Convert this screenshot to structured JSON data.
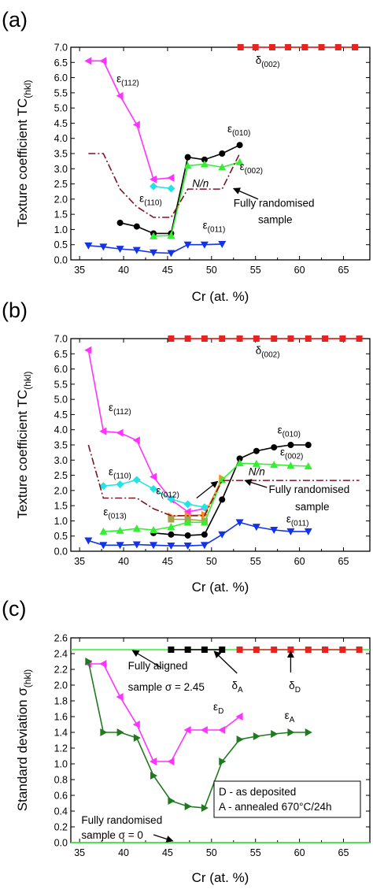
{
  "chart_data": [
    {
      "type": "line",
      "panel_label": "(a)",
      "xlabel": "Cr (at. %)",
      "ylabel": "Texture coefficient TC",
      "ylabel_sub": "(hkl)",
      "xlim": [
        34,
        68
      ],
      "ylim": [
        0,
        7
      ],
      "xticks": [
        "35",
        "40",
        "45",
        "50",
        "55",
        "60",
        "65"
      ],
      "yticks": [
        "0.0",
        "0.5",
        "1.0",
        "1.5",
        "2.0",
        "2.5",
        "3.0",
        "3.5",
        "4.0",
        "4.5",
        "5.0",
        "5.5",
        "6.0",
        "6.5",
        "7.0"
      ],
      "series": [
        {
          "key": "d002",
          "color": "#e8231f",
          "marker": "square",
          "dash": "",
          "x": [
            53.3,
            55.0,
            56.9,
            58.7,
            60.6,
            62.5,
            64.4,
            66.3
          ],
          "y": [
            7,
            7,
            7,
            7,
            7,
            7,
            7,
            7
          ]
        },
        {
          "key": "e112",
          "color": "#ff33ff",
          "marker": "tri-left",
          "dash": "",
          "x": [
            36.0,
            37.7,
            39.6,
            41.5,
            43.4,
            45.4
          ],
          "y": [
            6.55,
            6.55,
            5.4,
            4.45,
            2.65,
            2.7
          ]
        },
        {
          "key": "e010",
          "color": "#000000",
          "marker": "circle",
          "dash": "",
          "x": [
            39.6,
            41.5,
            43.4,
            45.4,
            47.3,
            49.2,
            51.2,
            53.2
          ],
          "y": [
            1.22,
            1.1,
            0.87,
            0.87,
            3.38,
            3.3,
            3.5,
            3.78
          ]
        },
        {
          "key": "e002",
          "color": "#33ee33",
          "marker": "tri-up",
          "dash": "",
          "x": [
            43.4,
            45.4,
            47.3,
            49.2,
            51.2,
            53.2
          ],
          "y": [
            0.78,
            0.8,
            3.1,
            3.15,
            3.05,
            3.22
          ]
        },
        {
          "key": "e110",
          "color": "#22e4e4",
          "marker": "diamond",
          "dash": "",
          "x": [
            43.4,
            45.4
          ],
          "y": [
            2.42,
            2.35
          ]
        },
        {
          "key": "e011",
          "color": "#1433e8",
          "marker": "tri-down",
          "dash": "",
          "x": [
            36.0,
            37.7,
            39.6,
            41.5,
            43.4,
            45.4,
            47.3,
            49.2,
            51.2
          ],
          "y": [
            0.47,
            0.43,
            0.36,
            0.32,
            0.24,
            0.22,
            0.5,
            0.5,
            0.52
          ]
        },
        {
          "key": "nn",
          "color": "#7d1424",
          "marker": "none",
          "dash": "9,3,2,3",
          "x": [
            36.0,
            37.7,
            39.6,
            41.5,
            43.4,
            45.4,
            47.3,
            49.2,
            51.2,
            53.2
          ],
          "y": [
            3.5,
            3.5,
            2.33,
            1.75,
            1.4,
            1.4,
            2.33,
            2.33,
            2.33,
            3.5
          ]
        }
      ],
      "labels": [
        {
          "text": "δ",
          "sub": "(002)",
          "x": 55.0,
          "y": 6.45
        },
        {
          "text": "ε",
          "sub": "(112)",
          "x": 39.2,
          "y": 5.85
        },
        {
          "text": "ε",
          "sub": "(010)",
          "x": 51.8,
          "y": 4.2
        },
        {
          "text": "ε",
          "sub": "(002)",
          "x": 53.2,
          "y": 2.95
        },
        {
          "text": "ε",
          "sub": "(110)",
          "x": 41.8,
          "y": 1.9
        },
        {
          "text": "ε",
          "sub": "(011)",
          "x": 49.0,
          "y": 1.02
        },
        {
          "text": "N/n",
          "sub": "",
          "x": 47.8,
          "y": 2.4,
          "italic": true,
          "color": "#7d1424"
        },
        {
          "text": "Fully randomised",
          "sub": "",
          "x": 52.5,
          "y": 1.75
        },
        {
          "text": "sample",
          "sub": "",
          "x": 55.3,
          "y": 1.2
        }
      ],
      "arrows": [
        {
          "x1": 55.3,
          "y1": 2.0,
          "x2": 52.5,
          "y2": 2.35
        }
      ]
    },
    {
      "type": "line",
      "panel_label": "(b)",
      "xlabel": "Cr (at. %)",
      "ylabel": "Texture coefficient TC",
      "ylabel_sub": "(hkl)",
      "xlim": [
        34,
        68
      ],
      "ylim": [
        0,
        7
      ],
      "xticks": [
        "35",
        "40",
        "45",
        "50",
        "55",
        "60",
        "65"
      ],
      "yticks": [
        "0.0",
        "0.5",
        "1.0",
        "1.5",
        "2.0",
        "2.5",
        "3.0",
        "3.5",
        "4.0",
        "4.5",
        "5.0",
        "5.5",
        "6.0",
        "6.5",
        "7.0"
      ],
      "series": [
        {
          "key": "d002",
          "color": "#e8231f",
          "marker": "square",
          "dash": "",
          "x": [
            45.4,
            47.3,
            49.2,
            51.2,
            53.2,
            55.1,
            57.1,
            59.0,
            61.0,
            62.9,
            64.9,
            66.8
          ],
          "y": [
            7,
            7,
            7,
            7,
            7,
            7,
            7,
            7,
            7,
            7,
            7,
            7
          ]
        },
        {
          "key": "e112",
          "color": "#ff33ff",
          "marker": "tri-left",
          "dash": "",
          "x": [
            36.0,
            37.7,
            39.6,
            41.5,
            43.4,
            45.4,
            47.3,
            49.2
          ],
          "y": [
            6.62,
            3.95,
            3.9,
            3.65,
            2.45,
            1.7,
            1.3,
            1.4
          ]
        },
        {
          "key": "e110",
          "color": "#22e4e4",
          "marker": "diamond",
          "dash": "",
          "x": [
            37.7,
            39.6,
            41.5,
            43.4,
            45.4,
            47.3,
            49.2
          ],
          "y": [
            2.15,
            2.2,
            2.35,
            2.05,
            1.72,
            1.55,
            1.45
          ]
        },
        {
          "key": "e012",
          "color": "#ff8c1a",
          "marker": "tri-right",
          "dash": "",
          "x": [
            45.4,
            47.3,
            49.2,
            51.2
          ],
          "y": [
            1.15,
            1.18,
            1.2,
            2.4
          ]
        },
        {
          "key": "e013",
          "color": "#a6a24a",
          "marker": "square",
          "dash": "",
          "x": [
            45.4,
            47.3,
            49.2
          ],
          "y": [
            1.05,
            1.05,
            1.0
          ]
        },
        {
          "key": "e010",
          "color": "#000000",
          "marker": "circle",
          "dash": "",
          "x": [
            43.4,
            45.4,
            47.3,
            49.2,
            51.2,
            53.2,
            55.1,
            57.1,
            59.0,
            61.0
          ],
          "y": [
            0.6,
            0.55,
            0.52,
            0.55,
            1.7,
            3.05,
            3.3,
            3.42,
            3.5,
            3.5
          ]
        },
        {
          "key": "e002",
          "color": "#33ee33",
          "marker": "tri-up",
          "dash": "",
          "x": [
            37.7,
            39.6,
            41.5,
            43.4,
            45.4,
            47.3,
            49.2,
            51.2,
            53.2,
            55.1,
            57.1,
            59.0,
            61.0
          ],
          "y": [
            0.65,
            0.68,
            0.75,
            0.7,
            0.8,
            0.95,
            0.95,
            2.35,
            2.9,
            2.88,
            2.85,
            2.82,
            2.8
          ]
        },
        {
          "key": "e011",
          "color": "#1433e8",
          "marker": "tri-down",
          "dash": "",
          "x": [
            36.0,
            37.7,
            39.6,
            41.5,
            43.4,
            45.4,
            47.3,
            49.2,
            51.2,
            53.2,
            55.1,
            57.1,
            59.0,
            61.0
          ],
          "y": [
            0.35,
            0.2,
            0.2,
            0.22,
            0.2,
            0.18,
            0.18,
            0.2,
            0.55,
            0.95,
            0.8,
            0.7,
            0.65,
            0.65
          ]
        },
        {
          "key": "nn",
          "color": "#7d1424",
          "marker": "none",
          "dash": "9,3,2,3",
          "x": [
            36.0,
            37.7,
            39.6,
            41.5,
            43.4,
            45.4,
            47.3,
            49.2,
            51.2,
            53.2,
            55.1,
            57.1,
            59.0,
            61.0,
            62.9,
            64.9,
            66.8
          ],
          "y": [
            3.5,
            1.75,
            1.75,
            1.75,
            1.4,
            1.17,
            1.17,
            1.17,
            2.33,
            2.33,
            2.33,
            2.33,
            2.33,
            2.33,
            2.33,
            2.33,
            2.33
          ]
        }
      ],
      "labels": [
        {
          "text": "δ",
          "sub": "(002)",
          "x": 55.0,
          "y": 6.5
        },
        {
          "text": "ε",
          "sub": "(112)",
          "x": 38.3,
          "y": 4.62
        },
        {
          "text": "ε",
          "sub": "(010)",
          "x": 57.5,
          "y": 3.88
        },
        {
          "text": "ε",
          "sub": "(002)",
          "x": 57.8,
          "y": 3.15
        },
        {
          "text": "ε",
          "sub": "(110)",
          "x": 38.3,
          "y": 2.5
        },
        {
          "text": "ε",
          "sub": "(012)",
          "x": 43.7,
          "y": 1.88
        },
        {
          "text": "ε",
          "sub": "(013)",
          "x": 37.7,
          "y": 1.18
        },
        {
          "text": "ε",
          "sub": "(011)",
          "x": 58.5,
          "y": 0.95
        },
        {
          "text": "N/n",
          "sub": "",
          "x": 54.2,
          "y": 2.5,
          "italic": true,
          "color": "#7d1424"
        },
        {
          "text": "Fully randomised",
          "sub": "",
          "x": 56.5,
          "y": 1.92
        },
        {
          "text": "sample",
          "sub": "",
          "x": 59.5,
          "y": 1.35
        }
      ],
      "arrows": [
        {
          "x1": 56.3,
          "y1": 2.1,
          "x2": 53.8,
          "y2": 2.33
        },
        {
          "x1": 48.3,
          "y1": 1.75,
          "x2": 50.7,
          "y2": 2.3
        }
      ]
    },
    {
      "type": "line",
      "panel_label": "(c)",
      "xlabel": "Cr (at. %)",
      "ylabel": "Standard deviation σ",
      "ylabel_sub": "(hkl)",
      "xlim": [
        34,
        68
      ],
      "ylim": [
        0,
        2.6
      ],
      "xticks": [
        "35",
        "40",
        "45",
        "50",
        "55",
        "60",
        "65"
      ],
      "yticks": [
        "0.0",
        "0.2",
        "0.4",
        "0.6",
        "0.8",
        "1.0",
        "1.2",
        "1.4",
        "1.6",
        "1.8",
        "2.0",
        "2.2",
        "2.4",
        "2.6"
      ],
      "series": [
        {
          "key": "aligned",
          "color": "#33ee33",
          "marker": "none",
          "dash": "",
          "x": [
            34,
            68
          ],
          "y": [
            2.45,
            2.45
          ]
        },
        {
          "key": "random",
          "color": "#33ee33",
          "marker": "none",
          "dash": "",
          "x": [
            34,
            68
          ],
          "y": [
            0,
            0
          ]
        },
        {
          "key": "dA",
          "color": "#000000",
          "marker": "square",
          "dash": "",
          "x": [
            45.4,
            47.3,
            49.2,
            51.2
          ],
          "y": [
            2.45,
            2.45,
            2.45,
            2.45
          ]
        },
        {
          "key": "dD",
          "color": "#e8231f",
          "marker": "square",
          "dash": "",
          "x": [
            53.2,
            55.1,
            57.1,
            59.0,
            61.0,
            62.9,
            64.9,
            66.8
          ],
          "y": [
            2.45,
            2.45,
            2.45,
            2.45,
            2.45,
            2.45,
            2.45,
            2.45
          ]
        },
        {
          "key": "eD",
          "color": "#ff33ff",
          "marker": "tri-left",
          "dash": "",
          "x": [
            36.0,
            37.7,
            39.6,
            41.5,
            43.4,
            45.4,
            47.3,
            49.2,
            51.2,
            53.2
          ],
          "y": [
            2.27,
            2.27,
            1.85,
            1.5,
            1.03,
            1.03,
            1.43,
            1.43,
            1.43,
            1.6
          ]
        },
        {
          "key": "eA",
          "color": "#1f7a1f",
          "marker": "tri-right",
          "dash": "",
          "x": [
            36.0,
            37.7,
            39.6,
            41.5,
            43.4,
            45.4,
            47.3,
            49.2,
            51.2,
            53.2,
            55.1,
            57.1,
            59.0,
            61.0
          ],
          "y": [
            2.3,
            1.4,
            1.4,
            1.33,
            0.85,
            0.53,
            0.46,
            0.44,
            1.03,
            1.31,
            1.35,
            1.38,
            1.4,
            1.4
          ]
        }
      ],
      "labels": [
        {
          "text": "Fully aligned",
          "sub": "",
          "x": 40.5,
          "y": 2.2
        },
        {
          "text": "sample σ = 2.45",
          "sub": "",
          "x": 40.5,
          "y": 1.93
        },
        {
          "text": "δ",
          "sub": "A",
          "x": 52.3,
          "y": 1.95
        },
        {
          "text": "δ",
          "sub": "D",
          "x": 58.8,
          "y": 1.95
        },
        {
          "text": "ε",
          "sub": "D",
          "x": 50.2,
          "y": 1.68
        },
        {
          "text": "ε",
          "sub": "A",
          "x": 58.3,
          "y": 1.57
        },
        {
          "text": "Fully randomised",
          "sub": "",
          "x": 35.2,
          "y": 0.24
        },
        {
          "text": "sample σ = 0",
          "sub": "",
          "x": 35.2,
          "y": 0.05
        }
      ],
      "arrows": [
        {
          "x1": 44.3,
          "y1": 2.22,
          "x2": 41.0,
          "y2": 2.44
        },
        {
          "x1": 52.9,
          "y1": 2.15,
          "x2": 50.3,
          "y2": 2.43
        },
        {
          "x1": 59.0,
          "y1": 2.16,
          "x2": 59.0,
          "y2": 2.43
        },
        {
          "x1": 43.4,
          "y1": 0.1,
          "x2": 45.6,
          "y2": 0.02
        }
      ],
      "legend_box": {
        "lines": [
          "D - as deposited",
          "A - annealed 670°C/24h"
        ],
        "position": "lower-right"
      }
    }
  ]
}
